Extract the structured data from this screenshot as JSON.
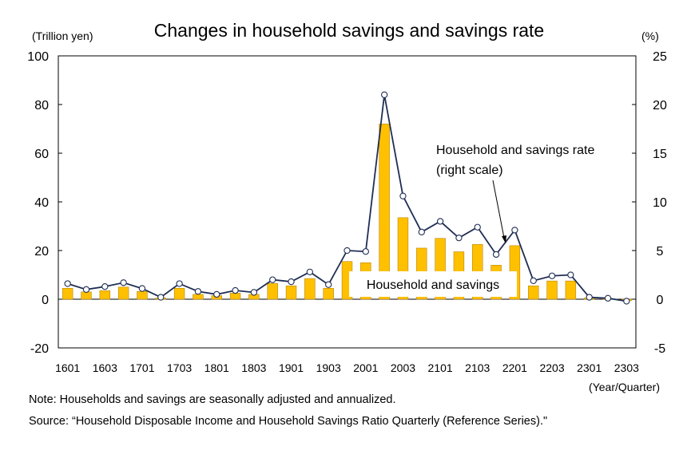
{
  "chart_data": {
    "type": "bar+line",
    "title": "Changes in household savings and savings rate",
    "left_axis_unit": "(Trillion yen)",
    "right_axis_unit": "(%)",
    "x_axis_unit": "(Year/Quarter)",
    "ylim_left": [
      -20,
      100
    ],
    "ylim_right": [
      -5,
      25
    ],
    "yticks_left": [
      -20,
      0,
      20,
      40,
      60,
      80,
      100
    ],
    "yticks_right": [
      -5,
      0,
      5,
      10,
      15,
      20,
      25
    ],
    "categories": [
      "1601",
      "1602",
      "1603",
      "1604",
      "1701",
      "1702",
      "1703",
      "1704",
      "1801",
      "1802",
      "1803",
      "1804",
      "1901",
      "1902",
      "1903",
      "1904",
      "2001",
      "2002",
      "2003",
      "2004",
      "2101",
      "2102",
      "2103",
      "2104",
      "2201",
      "2202",
      "2203",
      "2204",
      "2301",
      "2302",
      "2303"
    ],
    "x_tick_labels": [
      "1601",
      "1603",
      "1701",
      "1703",
      "1801",
      "1803",
      "1901",
      "1903",
      "2001",
      "2003",
      "2101",
      "2103",
      "2201",
      "2203",
      "2301",
      "2303"
    ],
    "grid": false,
    "series": [
      {
        "name": "Household and savings",
        "type": "bar",
        "axis": "left",
        "color": "#FFC000",
        "values": [
          4.5,
          3,
          3.5,
          5,
          3.2,
          0.5,
          4.5,
          2,
          1.5,
          2.5,
          2,
          6.5,
          5.5,
          8.5,
          4.5,
          15.5,
          15,
          72,
          33.5,
          21,
          25,
          19.5,
          22.5,
          14,
          22,
          5.5,
          7.5,
          7.5,
          0.5,
          0.3,
          -0.5
        ]
      },
      {
        "name": "Household and savings rate (right scale)",
        "type": "line",
        "axis": "right",
        "color": "#1F2E54",
        "values": [
          1.6,
          1.0,
          1.3,
          1.7,
          1.1,
          0.2,
          1.6,
          0.8,
          0.5,
          0.9,
          0.7,
          2.0,
          1.8,
          2.8,
          1.5,
          5.0,
          4.9,
          21.0,
          10.6,
          6.9,
          8.0,
          6.3,
          7.4,
          4.6,
          7.1,
          1.9,
          2.4,
          2.5,
          0.2,
          0.1,
          -0.2
        ]
      }
    ],
    "annotations": {
      "bar_label": "Household and savings",
      "line_label_1": "Household and savings rate",
      "line_label_2": "(right scale)"
    }
  },
  "notes": {
    "note": "Note: Households and savings are seasonally adjusted and annualized.",
    "source": "Source: “Household Disposable Income and Household Savings Ratio Quarterly (Reference Series).\""
  }
}
